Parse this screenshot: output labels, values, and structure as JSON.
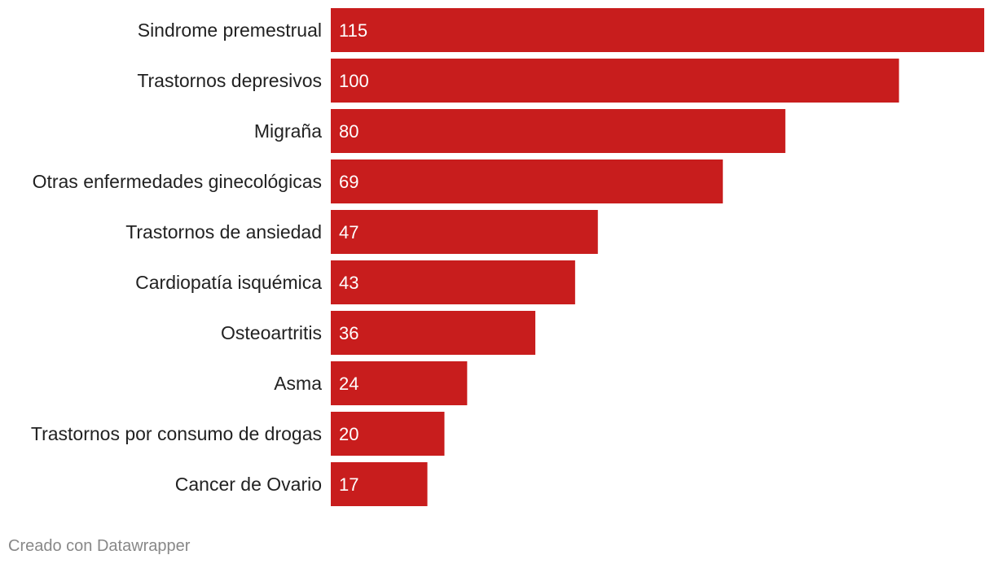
{
  "chart_data": {
    "type": "bar",
    "orientation": "horizontal",
    "categories": [
      "Sindrome premestrual",
      "Trastornos depresivos",
      "Migraña",
      "Otras enfermedades ginecológicas",
      "Trastornos de ansiedad",
      "Cardiopatía isquémica",
      "Osteoartritis",
      "Asma",
      "Trastornos por consumo de drogas",
      "Cancer de Ovario"
    ],
    "values": [
      115,
      100,
      80,
      69,
      47,
      43,
      36,
      24,
      20,
      17
    ],
    "xlim": [
      0,
      115
    ],
    "grid": false,
    "legend": "none",
    "bar_color": "#c81d1d",
    "value_label_color": "#ffffff",
    "category_label_color": "#222222"
  },
  "footer": {
    "credit": "Creado con Datawrapper"
  }
}
